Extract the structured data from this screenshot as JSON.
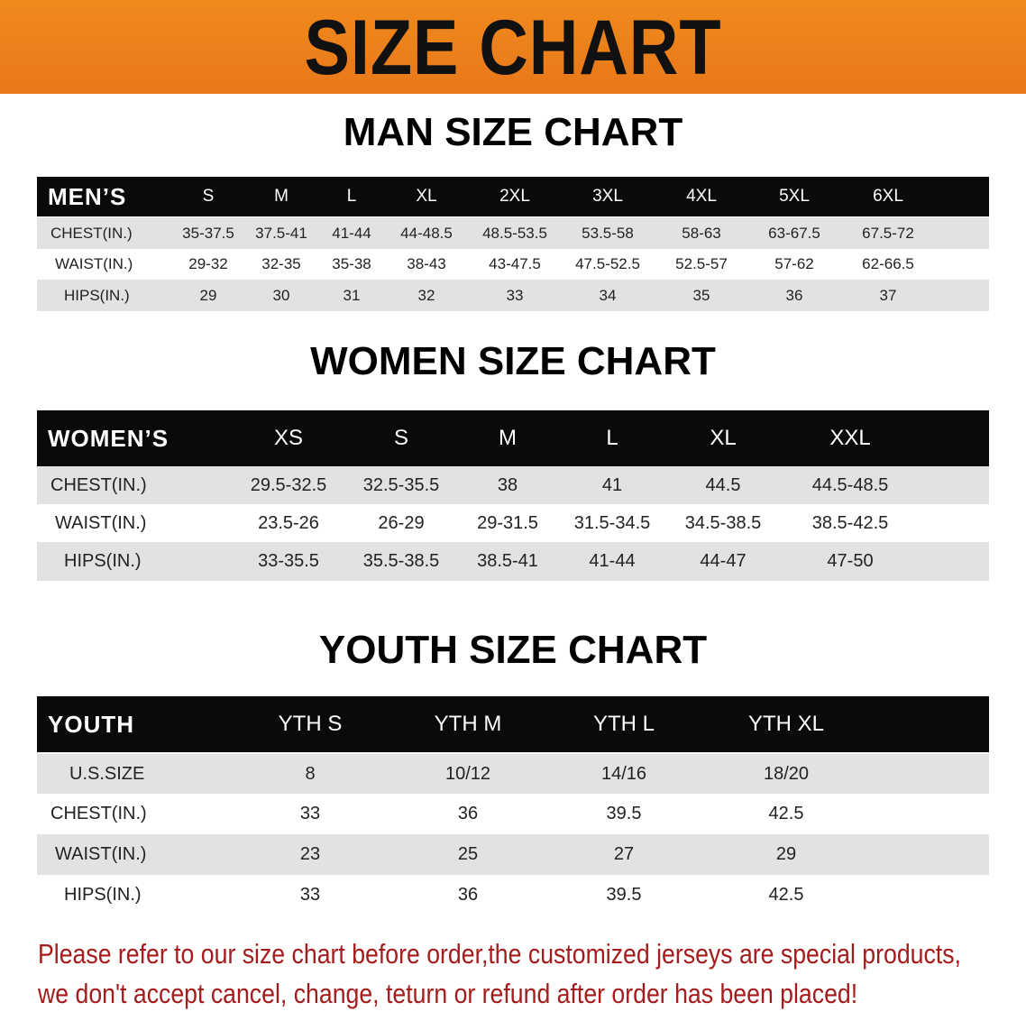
{
  "banner": {
    "title": "SIZE CHART",
    "color": "#ee821c"
  },
  "men": {
    "title": "MAN SIZE CHART",
    "header": "MEN’S",
    "sizes": [
      "S",
      "M",
      "L",
      "XL",
      "2XL",
      "3XL",
      "4XL",
      "5XL",
      "6XL"
    ],
    "rows": [
      {
        "label": "CHEST(IN.)",
        "values": [
          "35-37.5",
          "37.5-41",
          "41-44",
          "44-48.5",
          "48.5-53.5",
          "53.5-58",
          "58-63",
          "63-67.5",
          "67.5-72"
        ]
      },
      {
        "label": "WAIST(IN.)",
        "values": [
          "29-32",
          "32-35",
          "35-38",
          "38-43",
          "43-47.5",
          "47.5-52.5",
          "52.5-57",
          "57-62",
          "62-66.5"
        ]
      },
      {
        "label": "HIPS(IN.)",
        "values": [
          "29",
          "30",
          "31",
          "32",
          "33",
          "34",
          "35",
          "36",
          "37"
        ]
      }
    ]
  },
  "women": {
    "title": "WOMEN SIZE CHART",
    "header": "WOMEN’S",
    "sizes": [
      "XS",
      "S",
      "M",
      "L",
      "XL",
      "XXL"
    ],
    "rows": [
      {
        "label": "CHEST(IN.)",
        "values": [
          "29.5-32.5",
          "32.5-35.5",
          "38",
          "41",
          "44.5",
          "44.5-48.5"
        ]
      },
      {
        "label": "WAIST(IN.)",
        "values": [
          "23.5-26",
          "26-29",
          "29-31.5",
          "31.5-34.5",
          "34.5-38.5",
          "38.5-42.5"
        ]
      },
      {
        "label": "HIPS(IN.)",
        "values": [
          "33-35.5",
          "35.5-38.5",
          "38.5-41",
          "41-44",
          "44-47",
          "47-50"
        ]
      }
    ]
  },
  "youth": {
    "title": "YOUTH SIZE CHART",
    "header": "YOUTH",
    "sizes": [
      "YTH S",
      "YTH M",
      "YTH L",
      "YTH XL"
    ],
    "rows": [
      {
        "label": "U.S.SIZE",
        "values": [
          "8",
          "10/12",
          "14/16",
          "18/20"
        ]
      },
      {
        "label": "CHEST(IN.)",
        "values": [
          "33",
          "36",
          "39.5",
          "42.5"
        ]
      },
      {
        "label": "WAIST(IN.)",
        "values": [
          "23",
          "25",
          "27",
          "29"
        ]
      },
      {
        "label": "HIPS(IN.)",
        "values": [
          "33",
          "36",
          "39.5",
          "42.5"
        ]
      }
    ]
  },
  "note": {
    "line1": "Please refer to our size chart before order,the customized jerseys are special products,",
    "line2": "we don't accept cancel, change, teturn or refund after order has been placed!",
    "color": "#a51c1c"
  }
}
